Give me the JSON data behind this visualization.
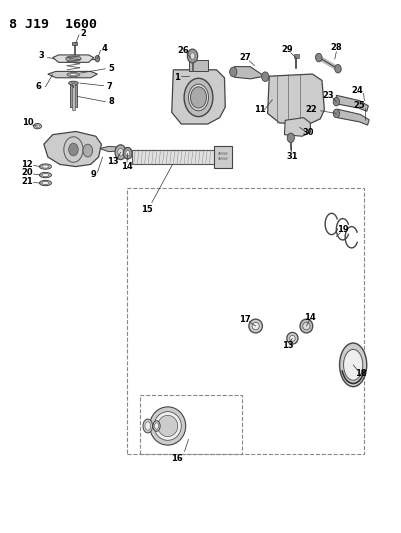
{
  "title": "8 J19  1600",
  "bg_color": "#ffffff",
  "line_color": "#000000",
  "fig_width": 4.01,
  "fig_height": 5.33,
  "dpi": 100
}
